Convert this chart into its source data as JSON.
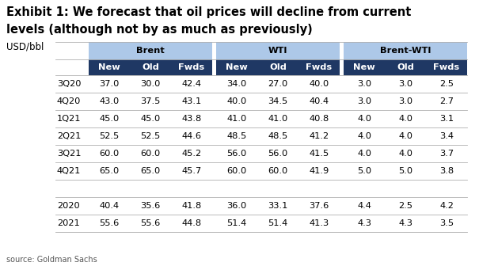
{
  "title_line1": "Exhibit 1: We forecast that oil prices will decline from current",
  "title_line2": "levels (although not by as much as previously)",
  "subtitle": "USD/bbl",
  "source": "source: Goldman Sachs",
  "group_headers": [
    "Brent",
    "WTI",
    "Brent-WTI"
  ],
  "col_headers": [
    "New",
    "Old",
    "Fwds"
  ],
  "row_labels": [
    "3Q20",
    "4Q20",
    "1Q21",
    "2Q21",
    "3Q21",
    "4Q21",
    "",
    "2020",
    "2021"
  ],
  "data": [
    [
      37.0,
      30.0,
      42.4,
      34.0,
      27.0,
      40.0,
      3.0,
      3.0,
      2.5
    ],
    [
      43.0,
      37.5,
      43.1,
      40.0,
      34.5,
      40.4,
      3.0,
      3.0,
      2.7
    ],
    [
      45.0,
      45.0,
      43.8,
      41.0,
      41.0,
      40.8,
      4.0,
      4.0,
      3.1
    ],
    [
      52.5,
      52.5,
      44.6,
      48.5,
      48.5,
      41.2,
      4.0,
      4.0,
      3.4
    ],
    [
      60.0,
      60.0,
      45.2,
      56.0,
      56.0,
      41.5,
      4.0,
      4.0,
      3.7
    ],
    [
      65.0,
      65.0,
      45.7,
      60.0,
      60.0,
      41.9,
      5.0,
      5.0,
      3.8
    ],
    [
      null,
      null,
      null,
      null,
      null,
      null,
      null,
      null,
      null
    ],
    [
      40.4,
      35.6,
      41.8,
      36.0,
      33.1,
      37.6,
      4.4,
      2.5,
      4.2
    ],
    [
      55.6,
      55.6,
      44.8,
      51.4,
      51.4,
      41.3,
      4.3,
      4.3,
      3.5
    ]
  ],
  "header_bg_light": "#adc8e8",
  "header_bg_dark": "#1f3864",
  "header_text_color": "#ffffff",
  "group_header_text_color": "#000000",
  "body_text_color": "#000000",
  "bg_color": "#ffffff",
  "title_color": "#000000",
  "font_size_title": 10.5,
  "font_size_subtitle": 8.5,
  "font_size_table": 8.2,
  "font_size_source": 7.0
}
